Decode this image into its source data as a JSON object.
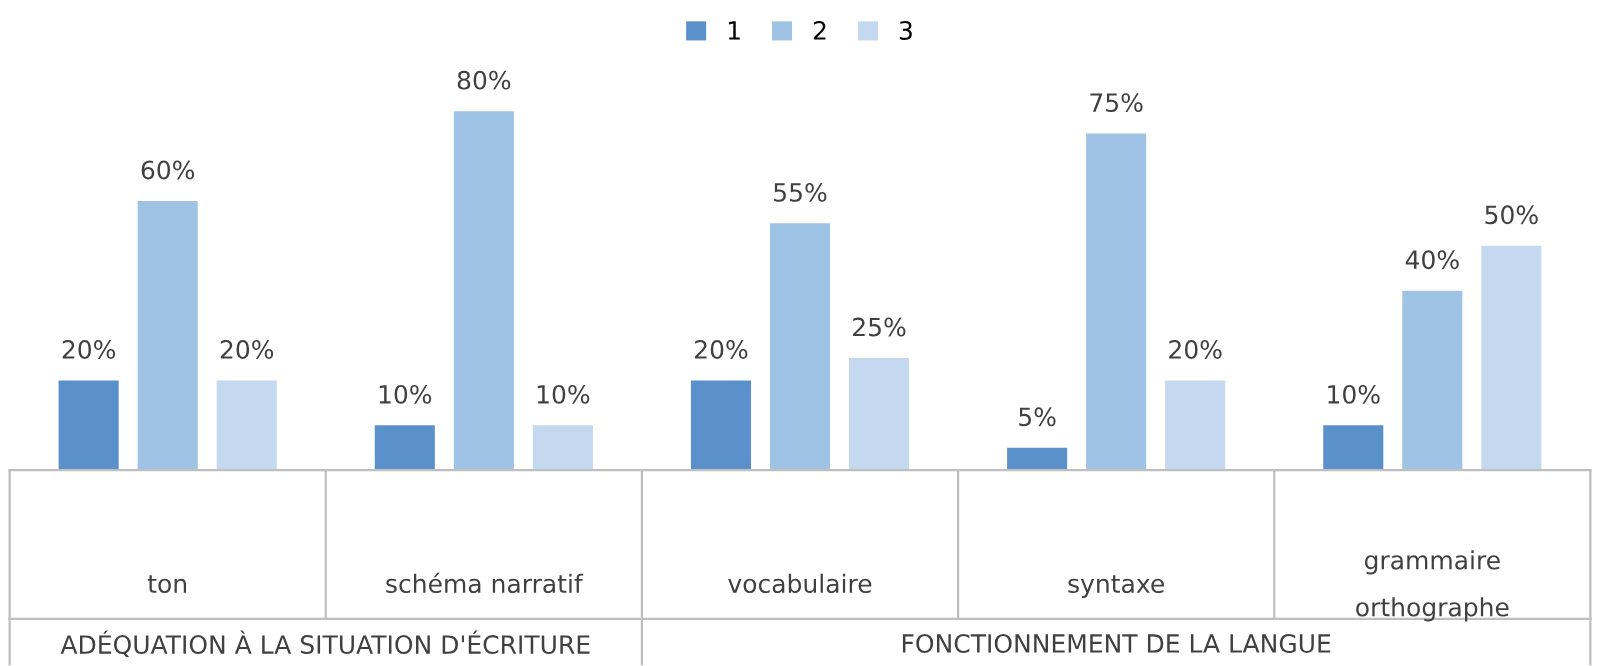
{
  "chart_data": {
    "type": "bar",
    "categories": [
      "ton",
      "schéma narratif",
      "vocabulaire",
      "syntaxe",
      "grammaire\northographe"
    ],
    "series": [
      {
        "name": "1",
        "color": "#5b91cb",
        "values": [
          20,
          10,
          20,
          5,
          10
        ],
        "value_labels": [
          "20%",
          "10%",
          "20%",
          "5%",
          "10%"
        ]
      },
      {
        "name": "2",
        "color": "#9ec3e5",
        "values": [
          60,
          80,
          55,
          75,
          40
        ],
        "value_labels": [
          "60%",
          "80%",
          "55%",
          "75%",
          "40%"
        ]
      },
      {
        "name": "3",
        "color": "#c4d8ef",
        "values": [
          20,
          10,
          25,
          20,
          50
        ],
        "value_labels": [
          "20%",
          "10%",
          "25%",
          "20%",
          "50%"
        ]
      }
    ],
    "legend": "top",
    "annotations": [
      "ADÉQUATION À LA SITUATION D'ÉCRITURE",
      "FONCTIONNEMENT DE LA LANGUE"
    ]
  }
}
